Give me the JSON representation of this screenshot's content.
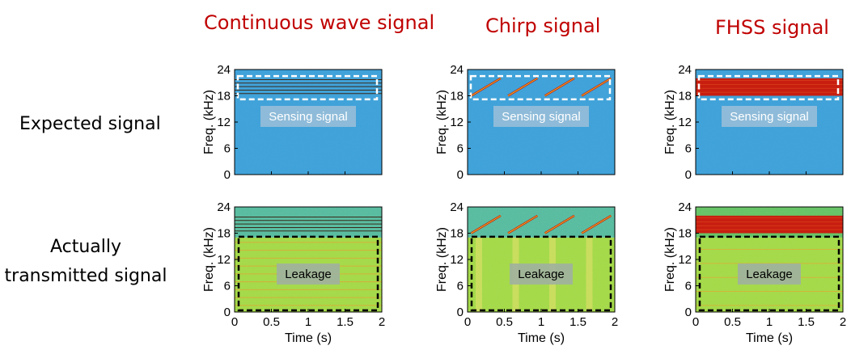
{
  "columns": [
    {
      "title": "Continuous wave signal"
    },
    {
      "title": "Chirp signal"
    },
    {
      "title": "FHSS signal"
    }
  ],
  "rows": [
    {
      "label": "Expected signal"
    },
    {
      "label": "Actually transmitted signal",
      "label_line1": "Actually",
      "label_line2": "transmitted signal"
    }
  ],
  "axes": {
    "y_label": "Freq. (kHz)",
    "x_label": "Time (s)",
    "y_ticks": [
      "0",
      "6",
      "12",
      "18",
      "24"
    ],
    "x_ticks": [
      "0",
      "0.5",
      "1",
      "1.5",
      "2"
    ]
  },
  "annotations": {
    "sensing": "Sensing signal",
    "leakage": "Leakage"
  },
  "colors": {
    "title_red": "#c00000",
    "background_blue": "#3aa0d8",
    "leakage_green": "#9ed84a",
    "signal_red": "#c81e10",
    "box_white": "#ffffff",
    "box_black": "#000000"
  },
  "chart_data": [
    {
      "type": "heatmap",
      "signal": "continuous wave",
      "row": "expected",
      "x_range": [
        0,
        2
      ],
      "y_range": [
        0,
        24
      ],
      "tones_khz": [
        18.5,
        19.3,
        20.1,
        20.9,
        21.7
      ]
    },
    {
      "type": "heatmap",
      "signal": "chirp",
      "row": "expected",
      "x_range": [
        0,
        2
      ],
      "y_range": [
        0,
        24
      ],
      "sweeps_khz": [
        18,
        22
      ],
      "sweep_count": 4
    },
    {
      "type": "heatmap",
      "signal": "FHSS",
      "row": "expected",
      "x_range": [
        0,
        2
      ],
      "y_range": [
        0,
        24
      ],
      "band_khz": [
        18,
        22
      ]
    },
    {
      "type": "heatmap",
      "signal": "continuous wave",
      "row": "actual",
      "x_range": [
        0,
        2
      ],
      "y_range": [
        0,
        24
      ],
      "leakage_khz": [
        0,
        17
      ]
    },
    {
      "type": "heatmap",
      "signal": "chirp",
      "row": "actual",
      "x_range": [
        0,
        2
      ],
      "y_range": [
        0,
        24
      ],
      "leakage_khz": [
        0,
        17
      ]
    },
    {
      "type": "heatmap",
      "signal": "FHSS",
      "row": "actual",
      "x_range": [
        0,
        2
      ],
      "y_range": [
        0,
        24
      ],
      "leakage_khz": [
        0,
        17
      ]
    }
  ]
}
